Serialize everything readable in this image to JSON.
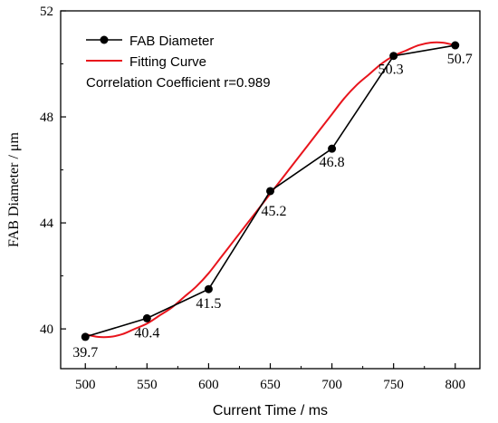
{
  "chart_data": {
    "type": "line",
    "title": "",
    "xlabel": "Current Time / ms",
    "ylabel": "FAB Diameter / μm",
    "xlim": [
      480,
      820
    ],
    "ylim": [
      38.5,
      52
    ],
    "x_ticks": [
      500,
      550,
      600,
      650,
      700,
      750,
      800
    ],
    "x_tick_labels": [
      "500",
      "550",
      "600",
      "650",
      "700",
      "750",
      "800"
    ],
    "y_ticks": [
      40,
      44,
      48,
      52
    ],
    "y_tick_labels": [
      "40",
      "44",
      "48",
      "52"
    ],
    "grid": false,
    "legend_position": "top-left",
    "series": [
      {
        "name": "FAB Diameter",
        "x": [
          500,
          550,
          600,
          650,
          700,
          750,
          800
        ],
        "values": [
          39.7,
          40.4,
          41.5,
          45.2,
          46.8,
          50.3,
          50.7
        ],
        "color": "#000000",
        "marker": "circle"
      },
      {
        "name": "Fitting Curve",
        "x": [
          500,
          510,
          520,
          530,
          540,
          550,
          560,
          570,
          580,
          590,
          600,
          610,
          620,
          630,
          640,
          650,
          660,
          670,
          680,
          690,
          700,
          710,
          720,
          730,
          740,
          750,
          760,
          770,
          780,
          790,
          800
        ],
        "values": [
          39.8,
          39.7,
          39.7,
          39.8,
          40.0,
          40.2,
          40.5,
          40.8,
          41.2,
          41.6,
          42.1,
          42.7,
          43.3,
          43.9,
          44.5,
          45.1,
          45.7,
          46.3,
          46.9,
          47.5,
          48.1,
          48.7,
          49.2,
          49.6,
          50.0,
          50.3,
          50.5,
          50.7,
          50.8,
          50.8,
          50.7
        ],
        "color": "#e8141c"
      }
    ],
    "data_labels": [
      "39.7",
      "40.4",
      "41.5",
      "45.2",
      "46.8",
      "50.3",
      "50.7"
    ],
    "annotation": "Correlation Coefficient r=0.989"
  }
}
